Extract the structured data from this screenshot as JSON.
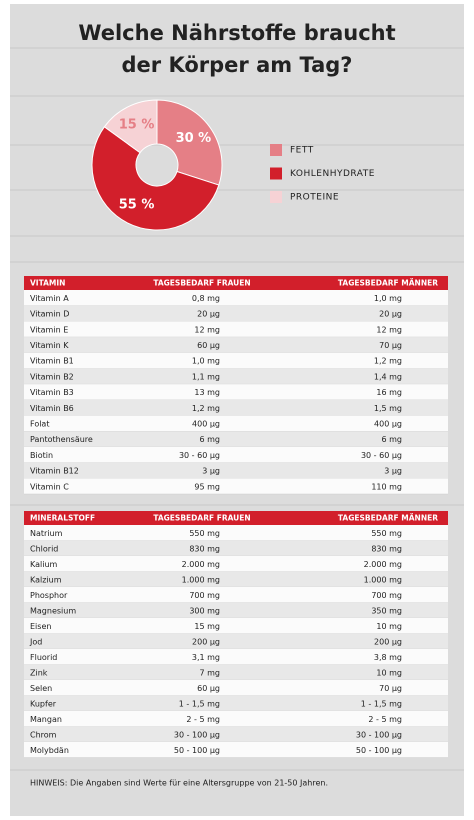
{
  "title": "Welche Nährstoffe braucht der Körper am Tag?",
  "chart_data": {
    "type": "pie",
    "categories": [
      "FETT",
      "KOHLENHYDRATE",
      "PROTEINE"
    ],
    "values": [
      30,
      55,
      15
    ],
    "value_labels": [
      "30 %",
      "55 %",
      "15 %"
    ],
    "colors": [
      "#e57f86",
      "#d21f2b",
      "#f6d2d5"
    ]
  },
  "vitamins": {
    "header": [
      "VITAMIN",
      "TAGESBEDARF FRAUEN",
      "TAGESBEDARF MÄNNER"
    ],
    "rows": [
      [
        "Vitamin A",
        "0,8 mg",
        "1,0 mg"
      ],
      [
        "Vitamin D",
        "20 µg",
        "20 µg"
      ],
      [
        "Vitamin E",
        "12 mg",
        "12 mg"
      ],
      [
        "Vitamin K",
        "60 µg",
        "70 µg"
      ],
      [
        "Vitamin B1",
        "1,0 mg",
        "1,2 mg"
      ],
      [
        "Vitamin B2",
        "1,1 mg",
        "1,4 mg"
      ],
      [
        "Vitamin B3",
        "13 mg",
        "16 mg"
      ],
      [
        "Vitamin B6",
        "1,2 mg",
        "1,5 mg"
      ],
      [
        "Folat",
        "400 µg",
        "400 µg"
      ],
      [
        "Pantothensäure",
        "6 mg",
        "6 mg"
      ],
      [
        "Biotin",
        "30 - 60 µg",
        "30 - 60 µg"
      ],
      [
        "Vitamin B12",
        "3 µg",
        "3 µg"
      ],
      [
        "Vitamin C",
        "95 mg",
        "110 mg"
      ]
    ]
  },
  "minerals": {
    "header": [
      "MINERALSTOFF",
      "TAGESBEDARF FRAUEN",
      "TAGESBEDARF MÄNNER"
    ],
    "rows": [
      [
        "Natrium",
        "550 mg",
        "550 mg"
      ],
      [
        "Chlorid",
        "830 mg",
        "830 mg"
      ],
      [
        "Kalium",
        "2.000 mg",
        "2.000 mg"
      ],
      [
        "Kalzium",
        "1.000 mg",
        "1.000 mg"
      ],
      [
        "Phosphor",
        "700 mg",
        "700 mg"
      ],
      [
        "Magnesium",
        "300 mg",
        "350 mg"
      ],
      [
        "Eisen",
        "15 mg",
        "10 mg"
      ],
      [
        "Jod",
        "200 µg",
        "200 µg"
      ],
      [
        "Fluorid",
        "3,1 mg",
        "3,8 mg"
      ],
      [
        "Zink",
        "7 mg",
        "10 mg"
      ],
      [
        "Selen",
        "60 µg",
        "70 µg"
      ],
      [
        "Kupfer",
        "1 - 1,5 mg",
        "1 - 1,5 mg"
      ],
      [
        "Mangan",
        "2 - 5 mg",
        "2 - 5 mg"
      ],
      [
        "Chrom",
        "30 - 100 µg",
        "30 - 100 µg"
      ],
      [
        "Molybdän",
        "50 - 100 µg",
        "50 - 100 µg"
      ]
    ]
  },
  "note": "HINWEIS: Die Angaben sind Werte für eine Altersgruppe von 21-50 Jahren."
}
